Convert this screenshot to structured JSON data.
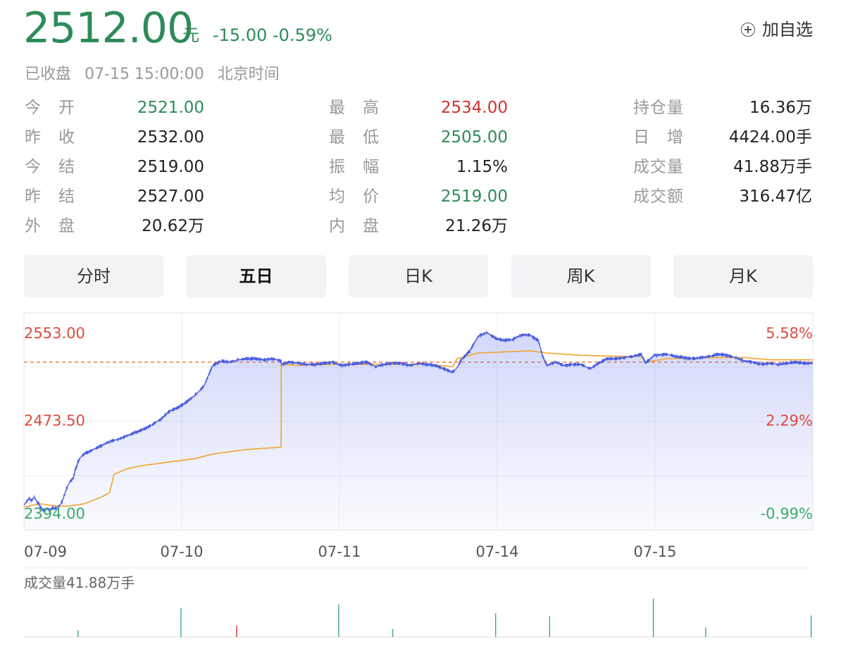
{
  "quote": {
    "price": "2512.00",
    "unit": "元",
    "change": "-15.00",
    "change_pct": "-0.59%",
    "status": "已收盘",
    "time": "07-15 15:00:00",
    "timezone": "北京时间",
    "add_watch": "加自选"
  },
  "stats": {
    "col1": [
      {
        "label": "今　开",
        "value": "2521.00",
        "color": "#2e8b57"
      },
      {
        "label": "昨　收",
        "value": "2532.00",
        "color": "#222222"
      },
      {
        "label": "今　结",
        "value": "2519.00",
        "color": "#222222"
      },
      {
        "label": "昨　结",
        "value": "2527.00",
        "color": "#222222"
      },
      {
        "label": "外　盘",
        "value": "20.62万",
        "color": "#222222"
      }
    ],
    "col2": [
      {
        "label": "最　高",
        "value": "2534.00",
        "color": "#d0322f"
      },
      {
        "label": "最　低",
        "value": "2505.00",
        "color": "#2e8b57"
      },
      {
        "label": "振　幅",
        "value": "1.15%",
        "color": "#222222"
      },
      {
        "label": "均　价",
        "value": "2519.00",
        "color": "#2e8b57"
      },
      {
        "label": "内　盘",
        "value": "21.26万",
        "color": "#222222"
      }
    ],
    "col3": [
      {
        "label": "持仓量",
        "value": "16.36万",
        "color": "#222222"
      },
      {
        "label": "日　增",
        "value": "4424.00手",
        "color": "#222222"
      },
      {
        "label": "成交量",
        "value": "41.88万手",
        "color": "#222222"
      },
      {
        "label": "成交额",
        "value": "316.47亿",
        "color": "#222222"
      }
    ]
  },
  "tabs": [
    {
      "label": "分时",
      "active": false
    },
    {
      "label": "五日",
      "active": true
    },
    {
      "label": "日K",
      "active": false
    },
    {
      "label": "周K",
      "active": false
    },
    {
      "label": "月K",
      "active": false
    }
  ],
  "colors": {
    "down": "#2e8b57",
    "up": "#d0322f",
    "up_axis": "#e04a3f",
    "down_axis": "#3aaa6c",
    "price_line": "#4a5fe0",
    "avg_line": "#f0a530",
    "ref_line": "#f07a3a"
  },
  "chart_data": {
    "type": "line",
    "x_ticks": [
      "07-09",
      "07-10",
      "07-11",
      "07-14",
      "07-15"
    ],
    "y_left_ticks": [
      "2553.00",
      "2473.50",
      "2394.00"
    ],
    "y_right_ticks": [
      "5.58%",
      "2.29%",
      "-0.99%"
    ],
    "ylim": [
      2394,
      2553
    ],
    "reference_price": 2527,
    "series": [
      {
        "kind": "price",
        "points": [
          [
            0,
            2401
          ],
          [
            0.03,
            2404
          ],
          [
            0.06,
            2407
          ],
          [
            0.09,
            2405
          ],
          [
            0.12,
            2408
          ],
          [
            0.15,
            2404
          ],
          [
            0.18,
            2401
          ],
          [
            0.21,
            2397
          ],
          [
            0.24,
            2396
          ],
          [
            0.27,
            2398
          ],
          [
            0.3,
            2396
          ],
          [
            0.33,
            2399
          ],
          [
            0.36,
            2398
          ],
          [
            0.39,
            2399
          ],
          [
            0.42,
            2401
          ],
          [
            0.45,
            2405
          ],
          [
            0.48,
            2412
          ],
          [
            0.51,
            2418
          ],
          [
            0.54,
            2422
          ],
          [
            0.57,
            2424
          ],
          [
            0.6,
            2432
          ],
          [
            0.63,
            2439
          ],
          [
            0.66,
            2443
          ],
          [
            0.7,
            2446
          ],
          [
            1.0,
            2457
          ],
          [
            1.1,
            2459
          ],
          [
            1.2,
            2462
          ],
          [
            1.3,
            2465
          ],
          [
            1.4,
            2468
          ],
          [
            1.5,
            2472
          ],
          [
            1.6,
            2477
          ],
          [
            1.7,
            2484
          ],
          [
            1.8,
            2487
          ],
          [
            1.9,
            2492
          ],
          [
            2.0,
            2498
          ],
          [
            2.1,
            2506
          ],
          [
            2.2,
            2524
          ],
          [
            2.3,
            2528
          ],
          [
            2.4,
            2527
          ],
          [
            2.5,
            2529
          ],
          [
            2.6,
            2530
          ],
          [
            2.7,
            2530
          ],
          [
            2.8,
            2529
          ],
          [
            2.9,
            2530
          ],
          [
            3.0,
            2528
          ],
          [
            3.0,
            2525
          ],
          [
            3.1,
            2527
          ],
          [
            3.2,
            2526
          ],
          [
            3.3,
            2525
          ],
          [
            3.4,
            2525
          ],
          [
            3.5,
            2526
          ],
          [
            3.6,
            2527
          ],
          [
            3.7,
            2524
          ],
          [
            3.8,
            2525
          ],
          [
            3.9,
            2526
          ],
          [
            4.0,
            2527
          ],
          [
            4.1,
            2523
          ],
          [
            4.2,
            2525
          ],
          [
            4.3,
            2526
          ],
          [
            4.4,
            2526
          ],
          [
            4.5,
            2524
          ],
          [
            4.6,
            2526
          ],
          [
            4.7,
            2525
          ],
          [
            4.8,
            2524
          ],
          [
            4.9,
            2521
          ],
          [
            5.0,
            2518
          ],
          [
            5.05,
            2522
          ],
          [
            5.1,
            2529
          ],
          [
            5.2,
            2537
          ],
          [
            5.3,
            2550
          ],
          [
            5.4,
            2553
          ],
          [
            5.5,
            2548
          ],
          [
            5.6,
            2546
          ],
          [
            5.7,
            2547
          ],
          [
            5.8,
            2551
          ],
          [
            5.9,
            2551
          ],
          [
            6.0,
            2546
          ],
          [
            6.05,
            2532
          ],
          [
            6.1,
            2524
          ],
          [
            6.2,
            2527
          ],
          [
            6.3,
            2524
          ],
          [
            6.4,
            2525
          ],
          [
            6.5,
            2525
          ],
          [
            6.6,
            2521
          ],
          [
            6.7,
            2526
          ],
          [
            6.8,
            2530
          ],
          [
            6.9,
            2530
          ],
          [
            7.0,
            2531
          ],
          [
            7.1,
            2532
          ],
          [
            7.2,
            2534
          ],
          [
            7.25,
            2526
          ],
          [
            7.35,
            2533
          ],
          [
            7.5,
            2534
          ],
          [
            7.6,
            2532
          ],
          [
            7.7,
            2531
          ],
          [
            7.8,
            2530
          ],
          [
            7.9,
            2531
          ],
          [
            8.0,
            2532
          ],
          [
            8.1,
            2534
          ],
          [
            8.2,
            2533
          ],
          [
            8.3,
            2531
          ],
          [
            8.4,
            2528
          ],
          [
            8.5,
            2527
          ],
          [
            8.6,
            2525
          ],
          [
            8.7,
            2526
          ],
          [
            8.8,
            2525
          ],
          [
            8.9,
            2526
          ],
          [
            9.0,
            2527
          ],
          [
            9.1,
            2526
          ],
          [
            9.2,
            2526
          ]
        ]
      },
      {
        "kind": "average",
        "points": [
          [
            0,
            2399
          ],
          [
            0.1,
            2401
          ],
          [
            0.2,
            2402
          ],
          [
            0.3,
            2401
          ],
          [
            0.4,
            2400
          ],
          [
            0.5,
            2400
          ],
          [
            0.6,
            2401
          ],
          [
            0.7,
            2402
          ],
          [
            0.8,
            2405
          ],
          [
            0.9,
            2408
          ],
          [
            1.0,
            2412
          ],
          [
            1.05,
            2428
          ],
          [
            1.2,
            2433
          ],
          [
            1.4,
            2436
          ],
          [
            1.6,
            2438
          ],
          [
            1.8,
            2440
          ],
          [
            2.0,
            2442
          ],
          [
            2.2,
            2446
          ],
          [
            2.4,
            2448
          ],
          [
            2.6,
            2450
          ],
          [
            2.8,
            2451
          ],
          [
            3.0,
            2452
          ],
          [
            3.0,
            2525
          ],
          [
            3.2,
            2524
          ],
          [
            3.5,
            2525
          ],
          [
            3.8,
            2525
          ],
          [
            4.1,
            2525
          ],
          [
            4.4,
            2525
          ],
          [
            4.7,
            2525
          ],
          [
            5.0,
            2523
          ],
          [
            5.05,
            2530
          ],
          [
            5.3,
            2535
          ],
          [
            5.6,
            2536
          ],
          [
            5.9,
            2537
          ],
          [
            6.1,
            2535
          ],
          [
            6.5,
            2533
          ],
          [
            7.0,
            2532
          ],
          [
            7.2,
            2532
          ],
          [
            7.25,
            2527
          ],
          [
            7.5,
            2530
          ],
          [
            8.0,
            2531
          ],
          [
            8.4,
            2531
          ],
          [
            8.7,
            2529
          ],
          [
            9.0,
            2529
          ],
          [
            9.2,
            2529
          ]
        ]
      }
    ],
    "volume_label": "成交量41.88万手",
    "volume_bars": [
      {
        "x": 0.63,
        "h": 0.14,
        "dir": "down"
      },
      {
        "x": 1.83,
        "h": 0.6,
        "dir": "down"
      },
      {
        "x": 2.48,
        "h": 0.24,
        "dir": "up"
      },
      {
        "x": 3.67,
        "h": 0.68,
        "dir": "down"
      },
      {
        "x": 4.3,
        "h": 0.17,
        "dir": "down"
      },
      {
        "x": 5.5,
        "h": 0.5,
        "dir": "down"
      },
      {
        "x": 6.13,
        "h": 0.44,
        "dir": "down"
      },
      {
        "x": 7.34,
        "h": 0.8,
        "dir": "down"
      },
      {
        "x": 7.95,
        "h": 0.2,
        "dir": "down"
      },
      {
        "x": 9.18,
        "h": 0.45,
        "dir": "down"
      }
    ]
  }
}
